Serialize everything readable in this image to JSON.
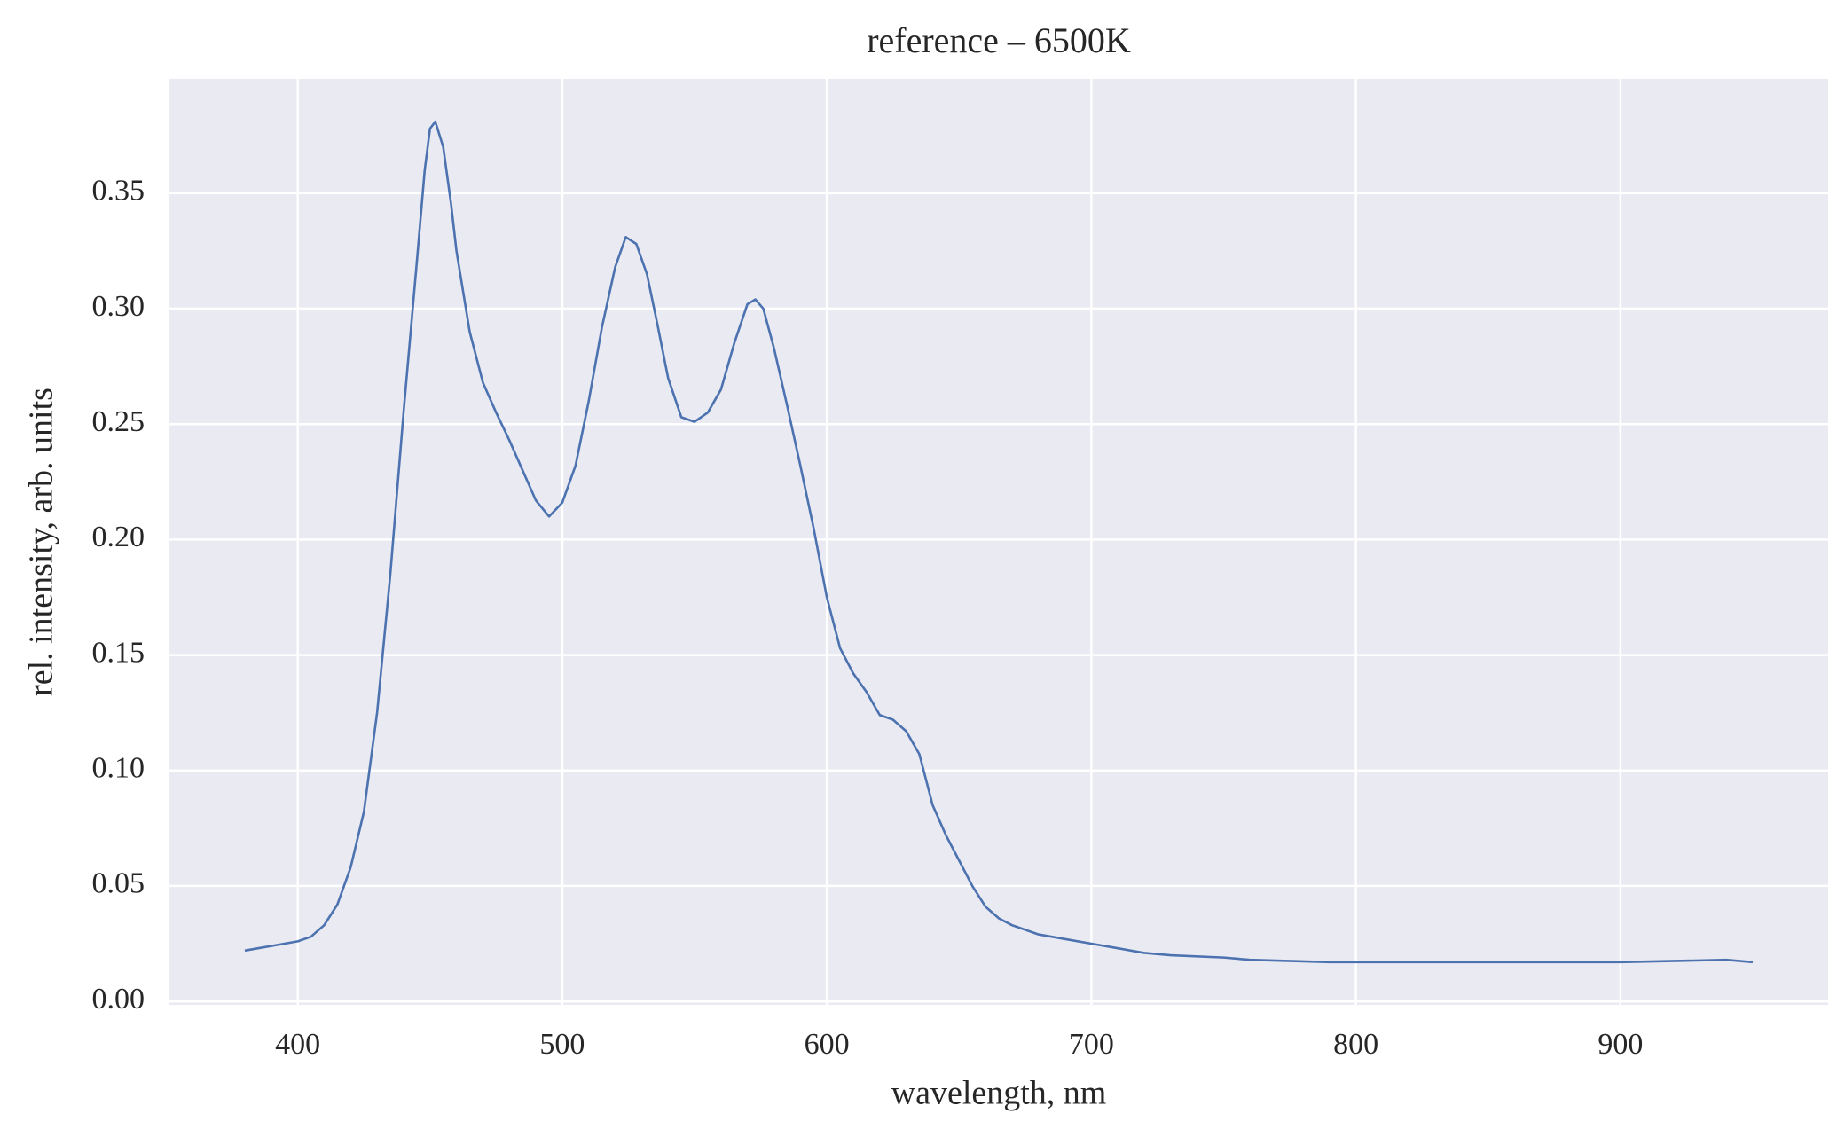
{
  "chart_data": {
    "type": "line",
    "title": "reference – 6500K",
    "x_label": "wavelength, nm",
    "y_label": "rel. intensity, arb. units",
    "x": [
      380,
      385,
      390,
      395,
      400,
      405,
      410,
      415,
      420,
      425,
      430,
      435,
      440,
      445,
      448,
      450,
      452,
      455,
      458,
      460,
      465,
      470,
      475,
      480,
      485,
      490,
      495,
      500,
      505,
      510,
      515,
      520,
      524,
      528,
      532,
      536,
      540,
      545,
      550,
      555,
      560,
      565,
      570,
      573,
      576,
      580,
      585,
      590,
      595,
      600,
      605,
      610,
      615,
      620,
      625,
      630,
      635,
      640,
      645,
      650,
      655,
      660,
      665,
      670,
      680,
      690,
      700,
      710,
      720,
      730,
      750,
      760,
      790,
      800,
      850,
      900,
      940,
      950
    ],
    "series": [
      {
        "name": "reference",
        "color": "#4c72b0",
        "values": [
          0.022,
          0.023,
          0.024,
          0.025,
          0.026,
          0.028,
          0.033,
          0.042,
          0.058,
          0.082,
          0.125,
          0.185,
          0.255,
          0.32,
          0.36,
          0.378,
          0.381,
          0.37,
          0.345,
          0.325,
          0.29,
          0.268,
          0.255,
          0.243,
          0.23,
          0.217,
          0.21,
          0.216,
          0.232,
          0.26,
          0.292,
          0.318,
          0.331,
          0.328,
          0.315,
          0.293,
          0.27,
          0.253,
          0.251,
          0.255,
          0.265,
          0.285,
          0.302,
          0.304,
          0.3,
          0.283,
          0.258,
          0.232,
          0.205,
          0.175,
          0.153,
          0.142,
          0.134,
          0.124,
          0.122,
          0.117,
          0.107,
          0.085,
          0.072,
          0.061,
          0.05,
          0.041,
          0.036,
          0.033,
          0.029,
          0.027,
          0.025,
          0.023,
          0.021,
          0.02,
          0.019,
          0.018,
          0.017,
          0.017,
          0.017,
          0.017,
          0.018,
          0.017
        ]
      }
    ],
    "xlim": [
      351.5,
      978.5
    ],
    "ylim": [
      -0.0015,
      0.3995
    ],
    "xticks": [
      400,
      500,
      600,
      700,
      800,
      900
    ],
    "yticks": [
      {
        "value": 0,
        "label": "0.00"
      },
      0.05,
      {
        "value": 0.1,
        "label": "0.10"
      },
      0.15,
      {
        "value": 0.2,
        "label": "0.20"
      },
      0.25,
      {
        "value": 0.3,
        "label": "0.30"
      },
      0.35
    ],
    "grid": true,
    "background": "#eaeaf2"
  }
}
